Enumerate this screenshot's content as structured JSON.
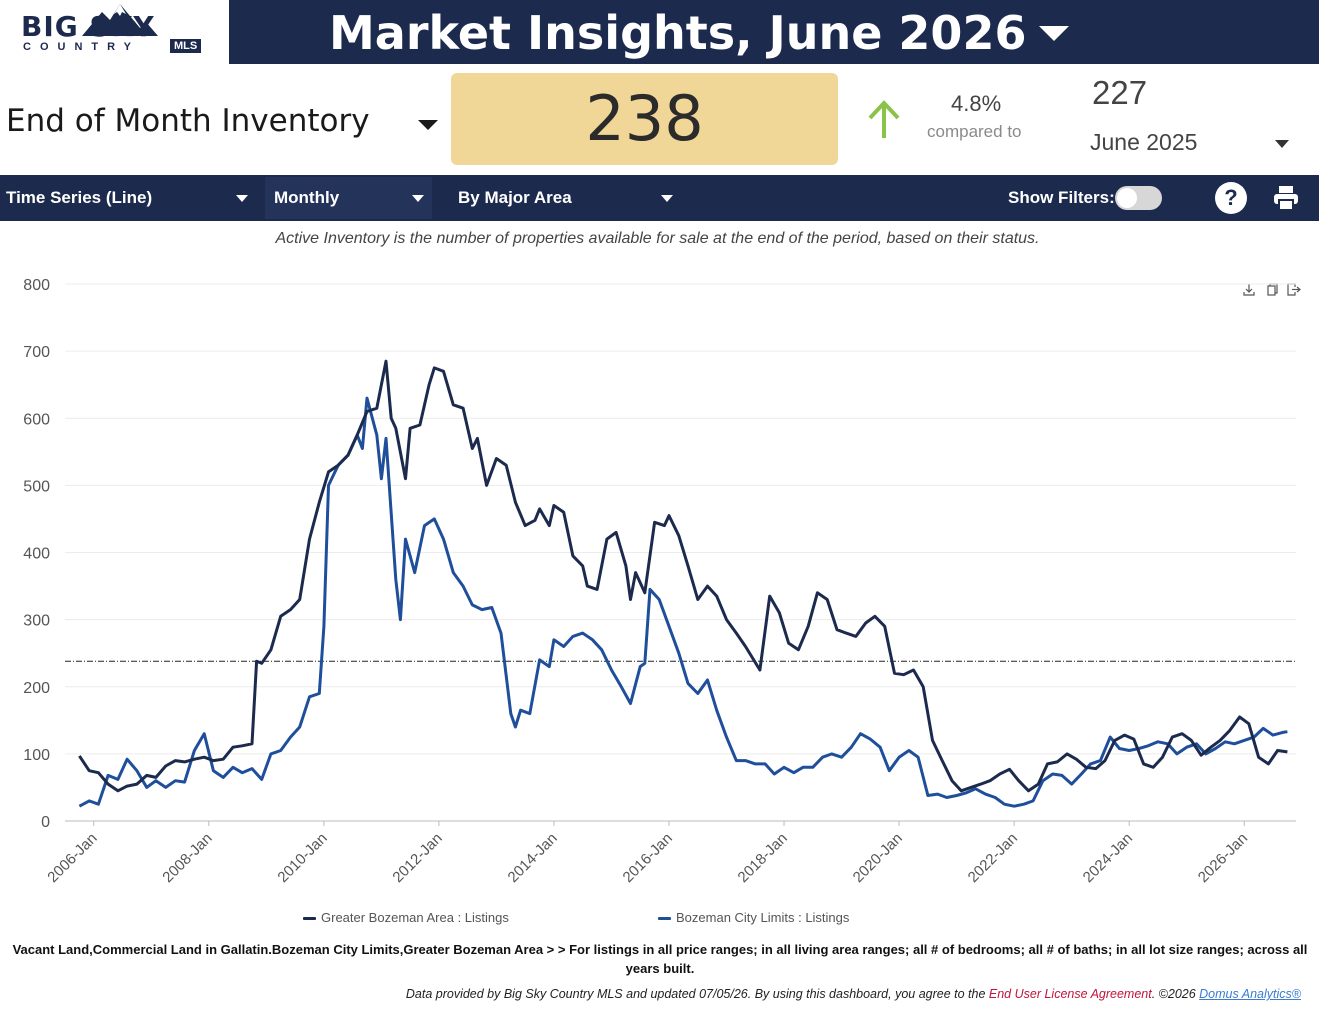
{
  "header": {
    "logo_big": "BIG SKY",
    "logo_country": "COUNTRY",
    "logo_mls": "MLS",
    "title": "Market Insights, June 2026"
  },
  "metric": {
    "name": "End of Month Inventory",
    "value": "238",
    "change_pct": "4.8%",
    "compared_label": "compared to",
    "prev_value": "227",
    "prev_period": "June 2025",
    "arrow": "up-arrow-icon",
    "kpi_color": "#f1d797",
    "arrow_color": "#8bc34a"
  },
  "toolbar": {
    "chart_type": "Time Series (Line)",
    "interval": "Monthly",
    "grouping": "By Major Area",
    "show_filters": "Show Filters:",
    "help": "?"
  },
  "subtitle": "Active Inventory is the number of properties available for sale at the end of the period, based on their status.",
  "criteria": "Vacant Land,Commercial Land in Gallatin.Bozeman City Limits,Greater Bozeman Area > > For listings in all price ranges; in all living area ranges; all # of bedrooms; all # of baths; in all lot size ranges; across all years built.",
  "footer": {
    "text": "Data provided by Big Sky Country MLS and updated 07/05/26.  By using this dashboard, you agree to the ",
    "license": "End User License Agreement",
    "copyright": ".  ©2026 ",
    "domus": "Domus Analytics®"
  },
  "chart_data": {
    "type": "line",
    "ylim": [
      0,
      800
    ],
    "yticks": [
      0,
      100,
      200,
      300,
      400,
      500,
      600,
      700,
      800
    ],
    "xlim": [
      2005.5,
      2026.9
    ],
    "xticks": [
      {
        "x": 2006,
        "label": "2006-Jan"
      },
      {
        "x": 2008,
        "label": "2008-Jan"
      },
      {
        "x": 2010,
        "label": "2010-Jan"
      },
      {
        "x": 2012,
        "label": "2012-Jan"
      },
      {
        "x": 2014,
        "label": "2014-Jan"
      },
      {
        "x": 2016,
        "label": "2016-Jan"
      },
      {
        "x": 2018,
        "label": "2018-Jan"
      },
      {
        "x": 2020,
        "label": "2020-Jan"
      },
      {
        "x": 2022,
        "label": "2022-Jan"
      },
      {
        "x": 2024,
        "label": "2024-Jan"
      },
      {
        "x": 2026,
        "label": "2026-Jan"
      }
    ],
    "reference_line": 238,
    "series": [
      {
        "name": "Greater Bozeman Area : Listings",
        "color": "#1c2a4e",
        "points": [
          [
            2005.75,
            97
          ],
          [
            2005.92,
            75
          ],
          [
            2006.08,
            72
          ],
          [
            2006.25,
            55
          ],
          [
            2006.42,
            45
          ],
          [
            2006.58,
            52
          ],
          [
            2006.75,
            55
          ],
          [
            2006.92,
            68
          ],
          [
            2007.08,
            65
          ],
          [
            2007.25,
            82
          ],
          [
            2007.42,
            90
          ],
          [
            2007.58,
            88
          ],
          [
            2007.75,
            92
          ],
          [
            2007.92,
            95
          ],
          [
            2008.08,
            90
          ],
          [
            2008.25,
            92
          ],
          [
            2008.42,
            110
          ],
          [
            2008.58,
            112
          ],
          [
            2008.75,
            115
          ],
          [
            2008.83,
            238
          ],
          [
            2008.92,
            235
          ],
          [
            2009.08,
            255
          ],
          [
            2009.25,
            305
          ],
          [
            2009.42,
            315
          ],
          [
            2009.58,
            330
          ],
          [
            2009.75,
            420
          ],
          [
            2009.92,
            475
          ],
          [
            2010.08,
            520
          ],
          [
            2010.25,
            530
          ],
          [
            2010.42,
            545
          ],
          [
            2010.58,
            575
          ],
          [
            2010.75,
            610
          ],
          [
            2010.92,
            615
          ],
          [
            2011.08,
            685
          ],
          [
            2011.17,
            600
          ],
          [
            2011.25,
            585
          ],
          [
            2011.42,
            510
          ],
          [
            2011.5,
            585
          ],
          [
            2011.67,
            590
          ],
          [
            2011.83,
            650
          ],
          [
            2011.92,
            675
          ],
          [
            2012.08,
            670
          ],
          [
            2012.25,
            620
          ],
          [
            2012.42,
            615
          ],
          [
            2012.58,
            555
          ],
          [
            2012.67,
            570
          ],
          [
            2012.83,
            500
          ],
          [
            2013.0,
            540
          ],
          [
            2013.17,
            530
          ],
          [
            2013.33,
            475
          ],
          [
            2013.5,
            440
          ],
          [
            2013.67,
            448
          ],
          [
            2013.75,
            465
          ],
          [
            2013.92,
            440
          ],
          [
            2014.0,
            470
          ],
          [
            2014.17,
            460
          ],
          [
            2014.33,
            395
          ],
          [
            2014.5,
            380
          ],
          [
            2014.58,
            350
          ],
          [
            2014.75,
            345
          ],
          [
            2014.92,
            420
          ],
          [
            2015.08,
            430
          ],
          [
            2015.25,
            380
          ],
          [
            2015.33,
            330
          ],
          [
            2015.42,
            370
          ],
          [
            2015.58,
            340
          ],
          [
            2015.75,
            445
          ],
          [
            2015.92,
            440
          ],
          [
            2016.0,
            455
          ],
          [
            2016.17,
            425
          ],
          [
            2016.33,
            380
          ],
          [
            2016.5,
            330
          ],
          [
            2016.67,
            350
          ],
          [
            2016.83,
            335
          ],
          [
            2017.0,
            300
          ],
          [
            2017.17,
            280
          ],
          [
            2017.33,
            260
          ],
          [
            2017.58,
            225
          ],
          [
            2017.75,
            335
          ],
          [
            2017.92,
            310
          ],
          [
            2018.08,
            265
          ],
          [
            2018.25,
            255
          ],
          [
            2018.42,
            290
          ],
          [
            2018.58,
            340
          ],
          [
            2018.75,
            330
          ],
          [
            2018.92,
            285
          ],
          [
            2019.08,
            280
          ],
          [
            2019.25,
            275
          ],
          [
            2019.42,
            295
          ],
          [
            2019.58,
            305
          ],
          [
            2019.75,
            290
          ],
          [
            2019.92,
            220
          ],
          [
            2020.08,
            218
          ],
          [
            2020.25,
            225
          ],
          [
            2020.42,
            200
          ],
          [
            2020.58,
            120
          ],
          [
            2020.75,
            90
          ],
          [
            2020.92,
            60
          ],
          [
            2021.08,
            45
          ],
          [
            2021.25,
            50
          ],
          [
            2021.42,
            55
          ],
          [
            2021.58,
            60
          ],
          [
            2021.75,
            70
          ],
          [
            2021.92,
            77
          ],
          [
            2022.08,
            60
          ],
          [
            2022.25,
            45
          ],
          [
            2022.42,
            55
          ],
          [
            2022.58,
            85
          ],
          [
            2022.75,
            88
          ],
          [
            2022.92,
            100
          ],
          [
            2023.08,
            92
          ],
          [
            2023.25,
            80
          ],
          [
            2023.42,
            78
          ],
          [
            2023.58,
            90
          ],
          [
            2023.75,
            120
          ],
          [
            2023.92,
            128
          ],
          [
            2024.08,
            122
          ],
          [
            2024.25,
            85
          ],
          [
            2024.42,
            80
          ],
          [
            2024.58,
            95
          ],
          [
            2024.75,
            125
          ],
          [
            2024.92,
            130
          ],
          [
            2025.08,
            120
          ],
          [
            2025.25,
            98
          ],
          [
            2025.42,
            110
          ],
          [
            2025.58,
            120
          ],
          [
            2025.75,
            135
          ],
          [
            2025.92,
            155
          ],
          [
            2026.08,
            145
          ],
          [
            2026.25,
            95
          ],
          [
            2026.42,
            85
          ],
          [
            2026.58,
            105
          ],
          [
            2026.75,
            103
          ]
        ]
      },
      {
        "name": "Bozeman City Limits : Listings",
        "color": "#1f4e9b",
        "points": [
          [
            2005.75,
            22
          ],
          [
            2005.92,
            30
          ],
          [
            2006.08,
            25
          ],
          [
            2006.25,
            68
          ],
          [
            2006.42,
            62
          ],
          [
            2006.58,
            92
          ],
          [
            2006.75,
            75
          ],
          [
            2006.92,
            50
          ],
          [
            2007.08,
            60
          ],
          [
            2007.25,
            50
          ],
          [
            2007.42,
            60
          ],
          [
            2007.58,
            58
          ],
          [
            2007.75,
            105
          ],
          [
            2007.92,
            130
          ],
          [
            2008.08,
            75
          ],
          [
            2008.25,
            65
          ],
          [
            2008.42,
            80
          ],
          [
            2008.58,
            72
          ],
          [
            2008.75,
            78
          ],
          [
            2008.92,
            62
          ],
          [
            2009.08,
            100
          ],
          [
            2009.25,
            105
          ],
          [
            2009.42,
            125
          ],
          [
            2009.58,
            140
          ],
          [
            2009.75,
            185
          ],
          [
            2009.92,
            190
          ],
          [
            2010.0,
            290
          ],
          [
            2010.08,
            500
          ],
          [
            2010.25,
            530
          ],
          [
            2010.42,
            545
          ],
          [
            2010.58,
            575
          ],
          [
            2010.67,
            555
          ],
          [
            2010.75,
            630
          ],
          [
            2010.92,
            575
          ],
          [
            2011.0,
            510
          ],
          [
            2011.08,
            570
          ],
          [
            2011.25,
            360
          ],
          [
            2011.33,
            300
          ],
          [
            2011.42,
            420
          ],
          [
            2011.58,
            370
          ],
          [
            2011.75,
            440
          ],
          [
            2011.92,
            450
          ],
          [
            2012.08,
            420
          ],
          [
            2012.25,
            370
          ],
          [
            2012.42,
            350
          ],
          [
            2012.58,
            322
          ],
          [
            2012.75,
            315
          ],
          [
            2012.92,
            318
          ],
          [
            2013.08,
            280
          ],
          [
            2013.25,
            160
          ],
          [
            2013.33,
            140
          ],
          [
            2013.42,
            165
          ],
          [
            2013.58,
            160
          ],
          [
            2013.75,
            240
          ],
          [
            2013.92,
            230
          ],
          [
            2014.0,
            270
          ],
          [
            2014.17,
            260
          ],
          [
            2014.33,
            275
          ],
          [
            2014.5,
            280
          ],
          [
            2014.67,
            270
          ],
          [
            2014.83,
            255
          ],
          [
            2015.0,
            225
          ],
          [
            2015.17,
            200
          ],
          [
            2015.33,
            175
          ],
          [
            2015.5,
            230
          ],
          [
            2015.58,
            235
          ],
          [
            2015.67,
            345
          ],
          [
            2015.83,
            330
          ],
          [
            2016.0,
            290
          ],
          [
            2016.17,
            250
          ],
          [
            2016.33,
            205
          ],
          [
            2016.5,
            190
          ],
          [
            2016.67,
            210
          ],
          [
            2016.83,
            165
          ],
          [
            2017.0,
            125
          ],
          [
            2017.17,
            90
          ],
          [
            2017.33,
            90
          ],
          [
            2017.5,
            85
          ],
          [
            2017.67,
            85
          ],
          [
            2017.83,
            70
          ],
          [
            2018.0,
            80
          ],
          [
            2018.17,
            72
          ],
          [
            2018.33,
            80
          ],
          [
            2018.5,
            80
          ],
          [
            2018.67,
            95
          ],
          [
            2018.83,
            100
          ],
          [
            2019.0,
            95
          ],
          [
            2019.17,
            110
          ],
          [
            2019.33,
            130
          ],
          [
            2019.5,
            122
          ],
          [
            2019.67,
            110
          ],
          [
            2019.83,
            75
          ],
          [
            2020.0,
            95
          ],
          [
            2020.17,
            105
          ],
          [
            2020.33,
            95
          ],
          [
            2020.5,
            38
          ],
          [
            2020.67,
            40
          ],
          [
            2020.83,
            35
          ],
          [
            2021.0,
            38
          ],
          [
            2021.17,
            42
          ],
          [
            2021.33,
            48
          ],
          [
            2021.5,
            40
          ],
          [
            2021.67,
            35
          ],
          [
            2021.83,
            25
          ],
          [
            2022.0,
            22
          ],
          [
            2022.17,
            25
          ],
          [
            2022.33,
            30
          ],
          [
            2022.5,
            60
          ],
          [
            2022.67,
            70
          ],
          [
            2022.83,
            68
          ],
          [
            2023.0,
            55
          ],
          [
            2023.17,
            70
          ],
          [
            2023.33,
            85
          ],
          [
            2023.5,
            90
          ],
          [
            2023.67,
            125
          ],
          [
            2023.83,
            108
          ],
          [
            2024.0,
            105
          ],
          [
            2024.17,
            108
          ],
          [
            2024.33,
            112
          ],
          [
            2024.5,
            118
          ],
          [
            2024.67,
            115
          ],
          [
            2024.83,
            100
          ],
          [
            2025.0,
            110
          ],
          [
            2025.17,
            115
          ],
          [
            2025.33,
            100
          ],
          [
            2025.5,
            108
          ],
          [
            2025.67,
            118
          ],
          [
            2025.83,
            115
          ],
          [
            2026.0,
            120
          ],
          [
            2026.17,
            125
          ],
          [
            2026.33,
            138
          ],
          [
            2026.5,
            128
          ],
          [
            2026.67,
            132
          ],
          [
            2026.75,
            133
          ]
        ]
      }
    ]
  }
}
